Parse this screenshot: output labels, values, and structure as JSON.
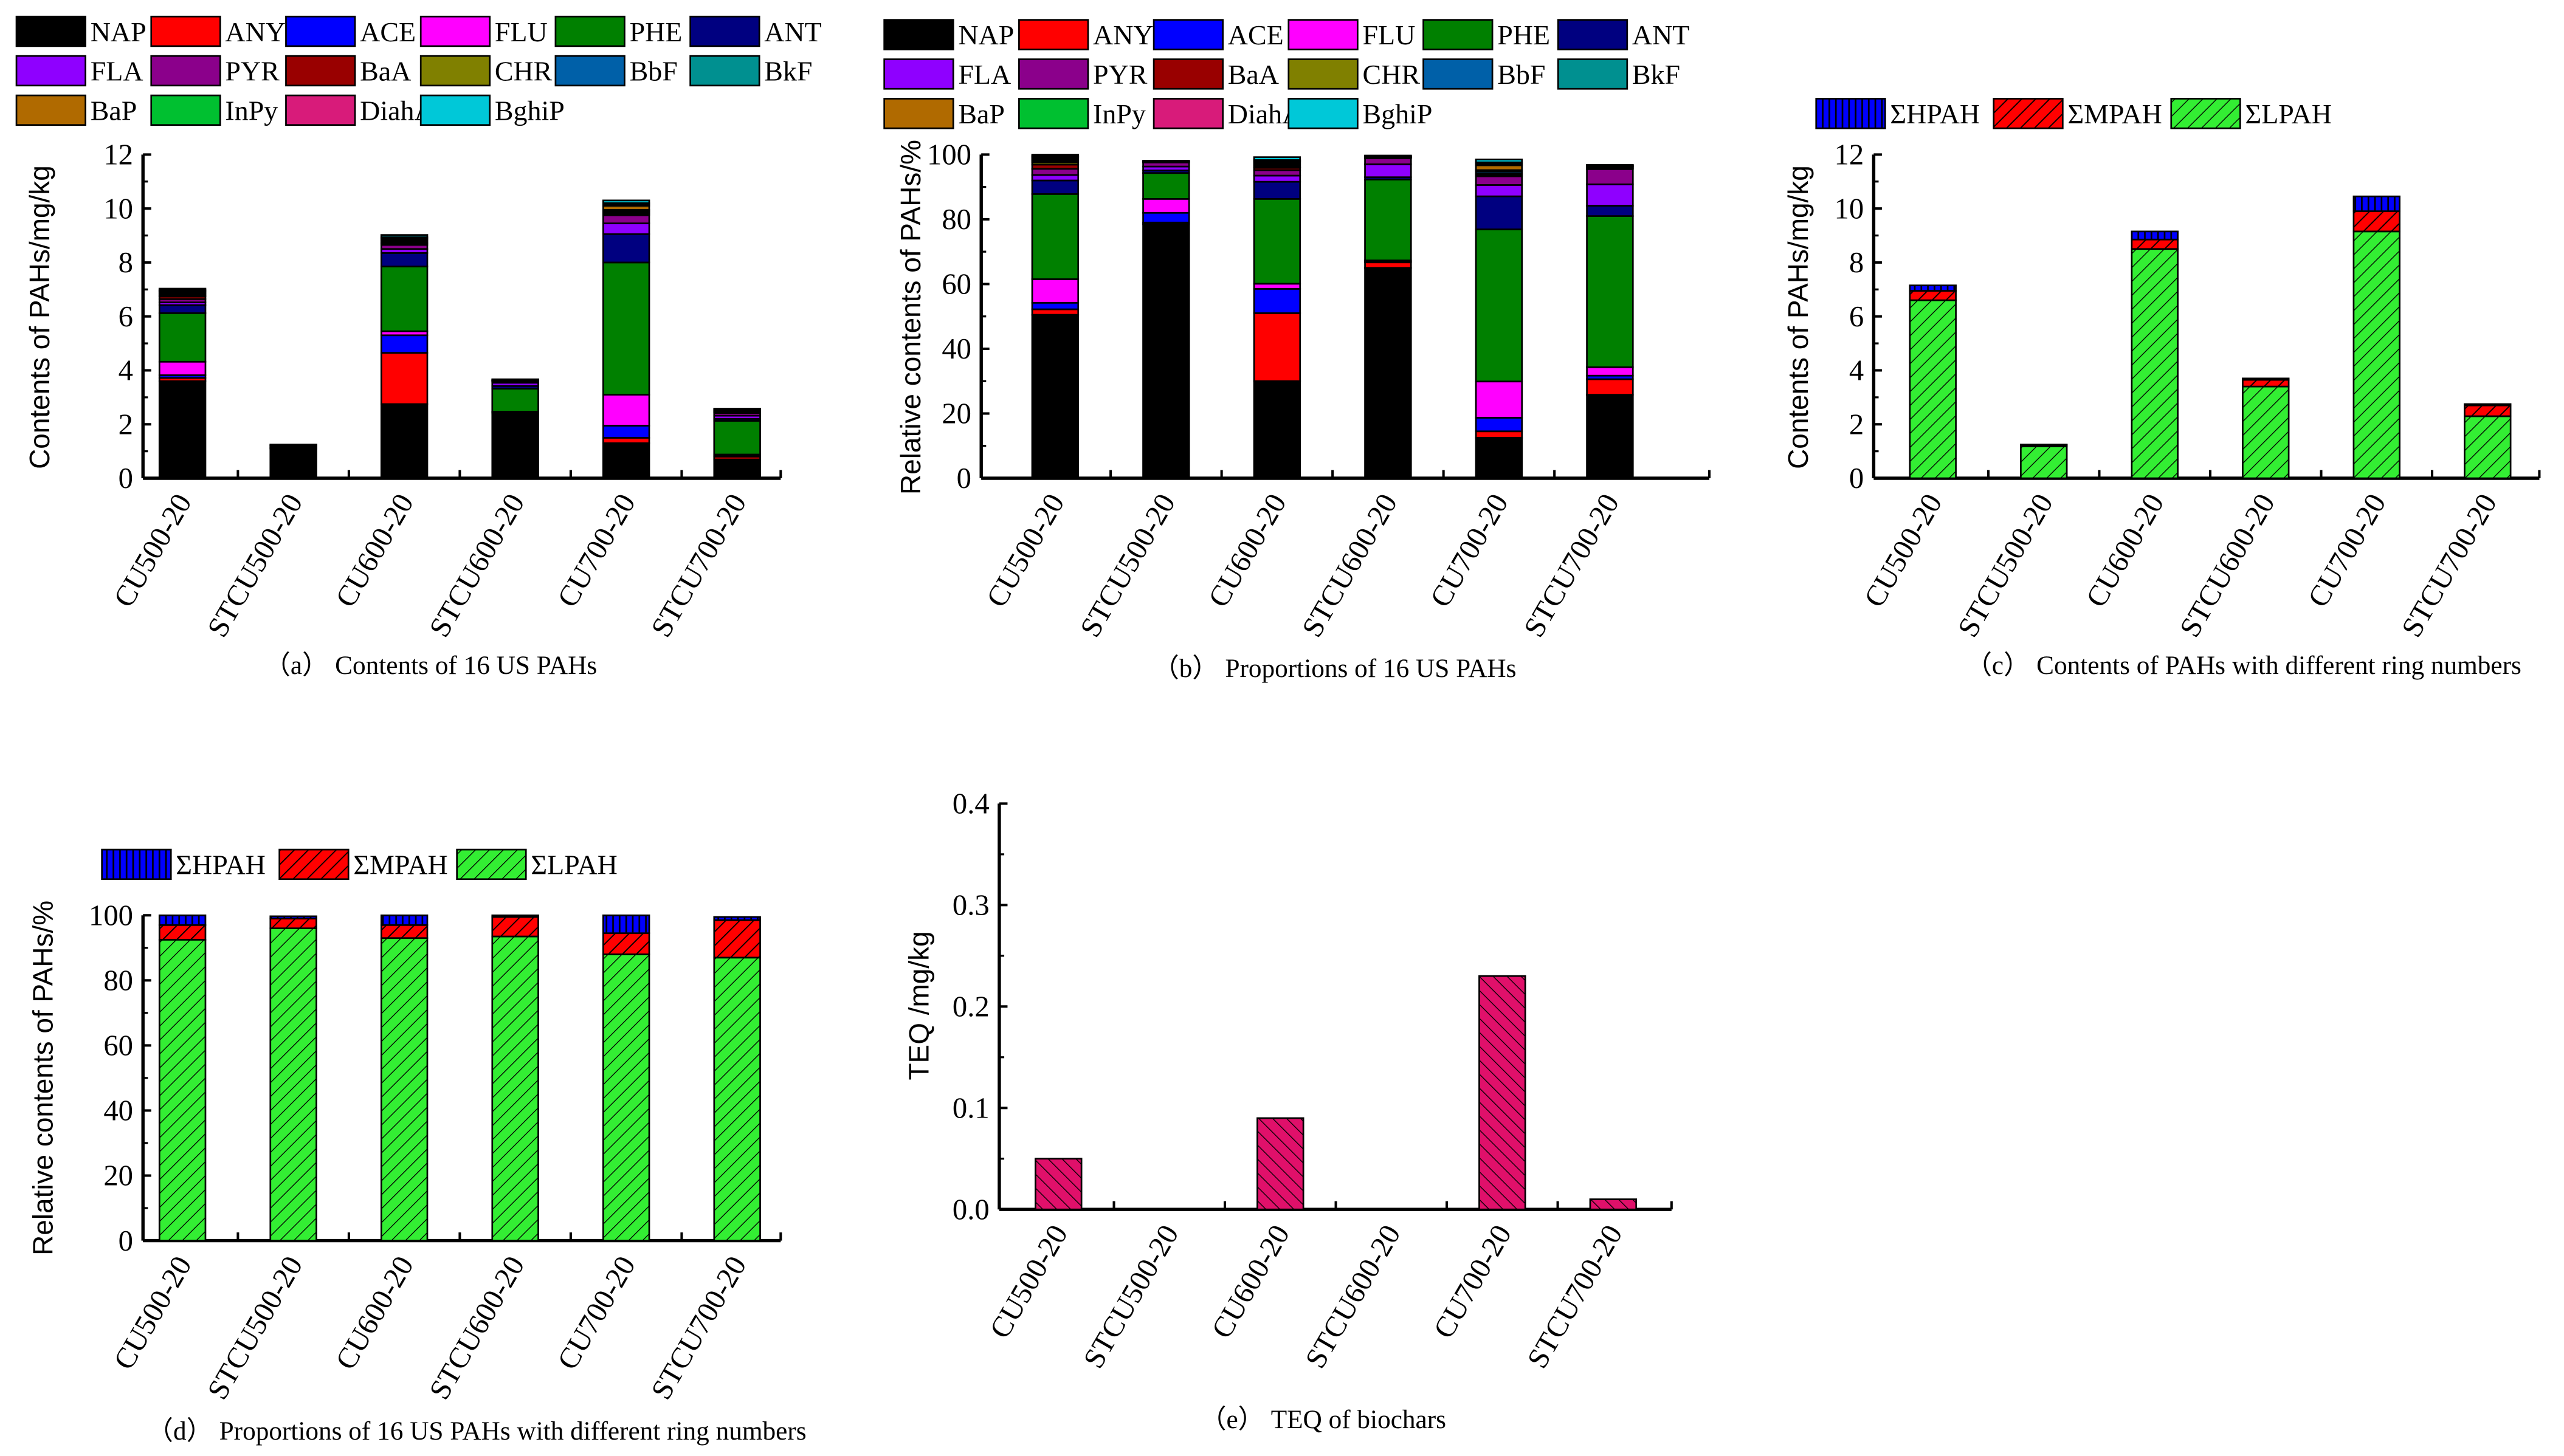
{
  "colors": {
    "NAP": "#000000",
    "ANY": "#ff0000",
    "ACE": "#0000ff",
    "FLU": "#ff00ff",
    "PHE": "#008000",
    "ANT": "#000080",
    "FLA": "#8f00ff",
    "PYR": "#8b008b",
    "BaA": "#990000",
    "CHR": "#808000",
    "BbF": "#0060a8",
    "BkF": "#009090",
    "BaP": "#b06a00",
    "InPy": "#00c030",
    "DiahA": "#d81b7a",
    "BghiP": "#00c8d8",
    "HPAH": "#0000ff",
    "MPAH": "#ff0000",
    "LPAH": "#33ee33",
    "TEQ": "#e0106a"
  },
  "chart_data": [
    {
      "id": "a",
      "type": "bar",
      "stacked": true,
      "caption": "（a） Contents of  16 US PAHs",
      "ylabel": "Contents of PAHs/mg/kg",
      "xlabel": "",
      "ylim": [
        0,
        12
      ],
      "yticks": [
        0,
        2,
        4,
        6,
        8,
        10,
        12
      ],
      "categories": [
        "CU500-20",
        "STCU500-20",
        "CU600-20",
        "STCU600-20",
        "CU700-20",
        "STCU700-20"
      ],
      "legend": "top",
      "series": [
        {
          "name": "NAP",
          "values": [
            3.6,
            1.1,
            2.75,
            2.4,
            1.3,
            0.7
          ]
        },
        {
          "name": "ANY",
          "values": [
            0.12,
            0.01,
            1.9,
            0.05,
            0.2,
            0.1
          ]
        },
        {
          "name": "ACE",
          "values": [
            0.1,
            0.02,
            0.65,
            0.01,
            0.45,
            0.03
          ]
        },
        {
          "name": "FLU",
          "values": [
            0.5,
            0.03,
            0.15,
            0.01,
            1.15,
            0.05
          ]
        },
        {
          "name": "PHE",
          "values": [
            1.8,
            0.05,
            2.4,
            0.85,
            4.9,
            1.25
          ]
        },
        {
          "name": "ANT",
          "values": [
            0.3,
            0.01,
            0.5,
            0.1,
            1.05,
            0.07
          ]
        },
        {
          "name": "FLA",
          "values": [
            0.1,
            0.02,
            0.15,
            0.12,
            0.4,
            0.12
          ]
        },
        {
          "name": "PYR",
          "values": [
            0.12,
            0.01,
            0.15,
            0.05,
            0.3,
            0.1
          ]
        },
        {
          "name": "BaA",
          "values": [
            0.1,
            0.0,
            0.05,
            0.01,
            0.05,
            0.02
          ]
        },
        {
          "name": "CHR",
          "values": [
            0.03,
            0.0,
            0.03,
            0.01,
            0.05,
            0.02
          ]
        },
        {
          "name": "BbF",
          "values": [
            0.05,
            0.0,
            0.05,
            0.01,
            0.05,
            0.02
          ]
        },
        {
          "name": "BkF",
          "values": [
            0.05,
            0.0,
            0.05,
            0.01,
            0.05,
            0.02
          ]
        },
        {
          "name": "BaP",
          "values": [
            0.05,
            0.0,
            0.05,
            0.01,
            0.15,
            0.02
          ]
        },
        {
          "name": "InPy",
          "values": [
            0.03,
            0.0,
            0.03,
            0.01,
            0.05,
            0.02
          ]
        },
        {
          "name": "DiahA",
          "values": [
            0.03,
            0.0,
            0.03,
            0.01,
            0.05,
            0.02
          ]
        },
        {
          "name": "BghiP",
          "values": [
            0.05,
            0.0,
            0.08,
            0.01,
            0.1,
            0.02
          ]
        }
      ]
    },
    {
      "id": "b",
      "type": "bar",
      "stacked": true,
      "caption": "（b） Proportions of 16 US PAHs",
      "ylabel": "Relative contents of PAHs/%",
      "xlabel": "",
      "ylim": [
        0,
        100
      ],
      "yticks": [
        0,
        20,
        40,
        60,
        80,
        100
      ],
      "categories": [
        "CU500-20",
        "STCU500-20",
        "CU600-20",
        "STCU600-20",
        "CU700-20",
        "STCU700-20"
      ],
      "legend": "top",
      "series": [
        {
          "name": "NAP",
          "values": [
            50.5,
            78.5,
            30,
            65,
            12.5,
            25.8
          ]
        },
        {
          "name": "ANY",
          "values": [
            1.7,
            0.5,
            21,
            1.7,
            2,
            4.8
          ]
        },
        {
          "name": "ACE",
          "values": [
            2,
            3,
            7.5,
            0.3,
            4.2,
            1.1
          ]
        },
        {
          "name": "FLU",
          "values": [
            7.3,
            4.3,
            1.6,
            0.3,
            11.2,
            2.6
          ]
        },
        {
          "name": "PHE",
          "values": [
            26.3,
            8,
            26.2,
            25,
            47,
            46.7
          ]
        },
        {
          "name": "ANT",
          "values": [
            4.2,
            0.8,
            5.3,
            0.7,
            10.2,
            3.2
          ]
        },
        {
          "name": "FLA",
          "values": [
            1.7,
            1.2,
            1.9,
            4,
            3.5,
            6.6
          ]
        },
        {
          "name": "PYR",
          "values": [
            1.9,
            1.3,
            1.7,
            1.9,
            2.7,
            4.7
          ]
        },
        {
          "name": "BaA",
          "values": [
            1.3,
            0.1,
            0.7,
            0.1,
            0.5,
            0.2
          ]
        },
        {
          "name": "CHR",
          "values": [
            0.7,
            0.1,
            0.3,
            0.1,
            0.4,
            0.2
          ]
        },
        {
          "name": "BbF",
          "values": [
            0.5,
            0.1,
            0.5,
            0.1,
            0.6,
            0.2
          ]
        },
        {
          "name": "BkF",
          "values": [
            0.4,
            0.1,
            0.5,
            0.1,
            0.4,
            0.2
          ]
        },
        {
          "name": "BaP",
          "values": [
            0.5,
            0.1,
            0.5,
            0.1,
            1.5,
            0.2
          ]
        },
        {
          "name": "InPy",
          "values": [
            0.3,
            0.0,
            0.3,
            0.1,
            0.5,
            0.1
          ]
        },
        {
          "name": "DiahA",
          "values": [
            0.3,
            0.0,
            0.3,
            0.1,
            0.4,
            0.1
          ]
        },
        {
          "name": "BghiP",
          "values": [
            0.4,
            0.0,
            0.9,
            0.1,
            0.9,
            0.1
          ]
        }
      ]
    },
    {
      "id": "c",
      "type": "bar",
      "stacked": true,
      "caption": "（c） Contents of PAHs with different ring numbers",
      "ylabel": "Contents of PAHs/mg/kg",
      "xlabel": "",
      "ylim": [
        0,
        12
      ],
      "yticks": [
        0,
        2,
        4,
        6,
        8,
        10,
        12
      ],
      "categories": [
        "CU500-20",
        "STCU500-20",
        "CU600-20",
        "STCU600-20",
        "CU700-20",
        "STCU700-20"
      ],
      "legend": "top",
      "series": [
        {
          "name": "ΣLPAH",
          "key": "LPAH",
          "values": [
            6.6,
            1.18,
            8.5,
            3.4,
            9.15,
            2.3
          ]
        },
        {
          "name": "ΣMPAH",
          "key": "MPAH",
          "values": [
            0.35,
            0.05,
            0.35,
            0.25,
            0.75,
            0.4
          ]
        },
        {
          "name": "ΣHPAH",
          "key": "HPAH",
          "values": [
            0.2,
            0.02,
            0.3,
            0.05,
            0.55,
            0.05
          ]
        }
      ]
    },
    {
      "id": "d",
      "type": "bar",
      "stacked": true,
      "caption": "（d） Proportions of 16 US PAHs with different ring numbers",
      "ylabel": "Relative contents of PAHs/%",
      "xlabel": "",
      "ylim": [
        0,
        100
      ],
      "yticks": [
        0,
        20,
        40,
        60,
        80,
        100
      ],
      "categories": [
        "CU500-20",
        "STCU500-20",
        "CU600-20",
        "STCU600-20",
        "CU700-20",
        "STCU700-20"
      ],
      "legend": "top",
      "series": [
        {
          "name": "ΣLPAH",
          "key": "LPAH",
          "values": [
            92.5,
            96,
            93,
            93.5,
            88,
            87
          ]
        },
        {
          "name": "ΣMPAH",
          "key": "MPAH",
          "values": [
            4.5,
            3,
            4,
            6,
            6.5,
            11.5
          ]
        },
        {
          "name": "ΣHPAH",
          "key": "HPAH",
          "values": [
            3,
            0.7,
            3,
            0.5,
            5.5,
            1
          ]
        }
      ]
    },
    {
      "id": "e",
      "type": "bar",
      "stacked": false,
      "caption": "（e） TEQ of biochars",
      "ylabel": "TEQ /mg/kg",
      "xlabel": "",
      "ylim": [
        0,
        0.4
      ],
      "yticks": [
        "0.0",
        "0.1",
        "0.2",
        "0.3",
        "0.4"
      ],
      "categories": [
        "CU500-20",
        "STCU500-20",
        "CU600-20",
        "STCU600-20",
        "CU700-20",
        "STCU700-20"
      ],
      "legend": "none",
      "series": [
        {
          "name": "TEQ",
          "key": "TEQ",
          "values": [
            0.05,
            0,
            0.09,
            0,
            0.23,
            0.01
          ]
        }
      ]
    }
  ]
}
